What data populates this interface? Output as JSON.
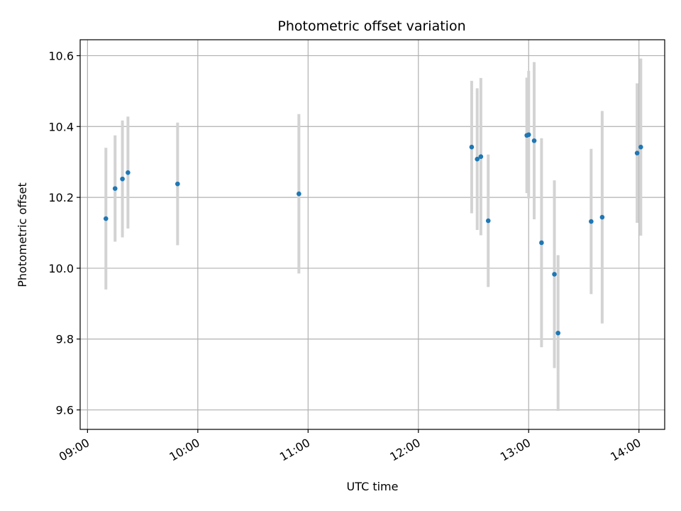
{
  "chart_data": {
    "type": "scatter",
    "title": "Photometric offset variation",
    "xlabel": "UTC time",
    "ylabel": "Photometric offset",
    "x_axis_kind": "time (HH:MM)",
    "xlim": [
      "08:56",
      "14:14"
    ],
    "ylim": [
      9.545,
      10.645
    ],
    "x_ticks": [
      "09:00",
      "10:00",
      "11:00",
      "12:00",
      "13:00",
      "14:00"
    ],
    "y_ticks": [
      "9.6",
      "9.8",
      "10.0",
      "10.2",
      "10.4",
      "10.6"
    ],
    "grid": true,
    "marker_color": "#1f77b4",
    "errorbar_color": "#d3d3d3",
    "points": [
      {
        "t": "09:10",
        "y": 10.14,
        "err": 0.2
      },
      {
        "t": "09:15",
        "y": 10.225,
        "err": 0.15
      },
      {
        "t": "09:19",
        "y": 10.252,
        "err": 0.165
      },
      {
        "t": "09:22",
        "y": 10.27,
        "err": 0.158
      },
      {
        "t": "09:49",
        "y": 10.238,
        "err": 0.173
      },
      {
        "t": "10:55",
        "y": 10.21,
        "err": 0.225
      },
      {
        "t": "12:29",
        "y": 10.342,
        "err": 0.187
      },
      {
        "t": "12:32",
        "y": 10.308,
        "err": 0.2
      },
      {
        "t": "12:34",
        "y": 10.315,
        "err": 0.222
      },
      {
        "t": "12:38",
        "y": 10.134,
        "err": 0.187
      },
      {
        "t": "12:59",
        "y": 10.375,
        "err": 0.163
      },
      {
        "t": "13:00",
        "y": 10.377,
        "err": 0.18
      },
      {
        "t": "13:03",
        "y": 10.36,
        "err": 0.222
      },
      {
        "t": "13:07",
        "y": 10.072,
        "err": 0.295
      },
      {
        "t": "13:14",
        "y": 9.983,
        "err": 0.265
      },
      {
        "t": "13:16",
        "y": 9.817,
        "err": 0.22
      },
      {
        "t": "13:34",
        "y": 10.132,
        "err": 0.205
      },
      {
        "t": "13:40",
        "y": 10.144,
        "err": 0.3
      },
      {
        "t": "13:59",
        "y": 10.325,
        "err": 0.197
      },
      {
        "t": "14:01",
        "y": 10.342,
        "err": 0.25
      }
    ]
  }
}
